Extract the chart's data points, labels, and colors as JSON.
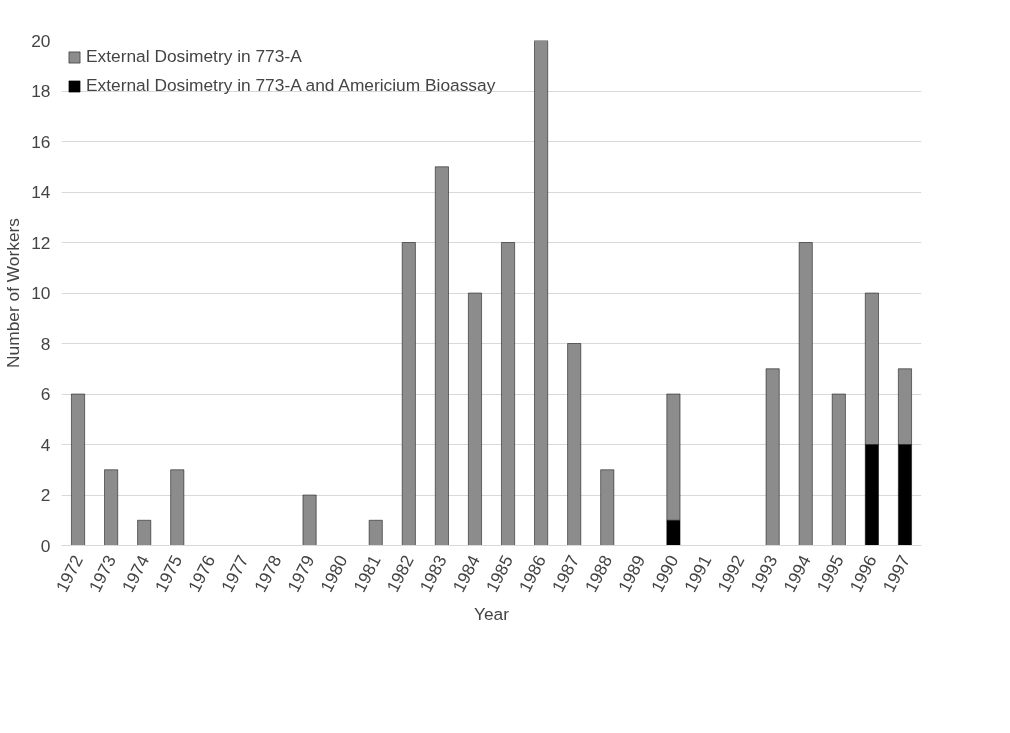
{
  "chart_data": {
    "type": "bar",
    "stacked": true,
    "xlabel": "Year",
    "ylabel": "Number of Workers",
    "categories": [
      "1972",
      "1973",
      "1974",
      "1975",
      "1976",
      "1977",
      "1978",
      "1979",
      "1980",
      "1981",
      "1982",
      "1983",
      "1984",
      "1985",
      "1986",
      "1987",
      "1988",
      "1989",
      "1990",
      "1991",
      "1992",
      "1993",
      "1994",
      "1995",
      "1996",
      "1997"
    ],
    "series": [
      {
        "name": "External Dosimetry in 773-A and Americium Bioassay",
        "color": "#000000",
        "values": [
          0,
          0,
          0,
          0,
          0,
          0,
          0,
          0,
          0,
          0,
          0,
          0,
          0,
          0,
          0,
          0,
          0,
          0,
          1,
          0,
          0,
          0,
          0,
          0,
          4,
          4
        ]
      },
      {
        "name": "External Dosimetry in 773-A",
        "color": "#8c8c8c",
        "values": [
          6,
          3,
          1,
          3,
          0,
          0,
          0,
          2,
          0,
          1,
          12,
          15,
          10,
          12,
          20,
          8,
          3,
          0,
          5,
          0,
          0,
          7,
          12,
          6,
          6,
          3
        ]
      }
    ],
    "ylim": [
      0,
      20
    ],
    "yticks": [
      0,
      2,
      4,
      6,
      8,
      10,
      12,
      14,
      16,
      18,
      20
    ],
    "grid": "y",
    "legend": "top left"
  }
}
